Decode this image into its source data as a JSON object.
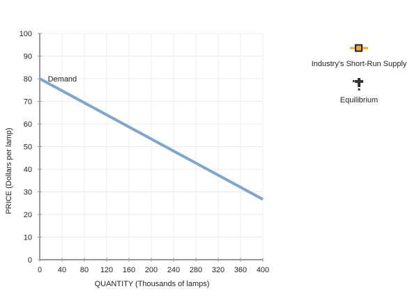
{
  "chart_data": {
    "type": "line",
    "title": "",
    "xlabel": "QUANTITY (Thousands of lamps)",
    "ylabel": "PRICE (Dollars per lamp)",
    "xlim": [
      0,
      400
    ],
    "ylim": [
      0,
      100
    ],
    "x_ticks": [
      0,
      40,
      80,
      120,
      160,
      200,
      240,
      280,
      320,
      360,
      400
    ],
    "y_ticks": [
      0,
      10,
      20,
      30,
      40,
      50,
      60,
      70,
      80,
      90,
      100
    ],
    "grid": true,
    "series": [
      {
        "name": "Demand",
        "color": "#7ea6cf",
        "x": [
          0,
          400
        ],
        "y": [
          80,
          26.7
        ],
        "label_position": {
          "x": 12,
          "y": 80
        }
      }
    ],
    "legend": {
      "position": "right",
      "entries": [
        {
          "name": "Industry's Short-Run Supply",
          "icon": "orange-square-line-marker",
          "color": "#f5a623",
          "border": "#222222"
        },
        {
          "name": "Equilibrium",
          "icon": "dark-cross-marker",
          "color": "#333333"
        }
      ]
    }
  },
  "legend": {
    "supply_label": "Industry's Short-Run Supply",
    "equilibrium_label": "Equilibrium"
  },
  "curve_labels": {
    "demand": "Demand"
  },
  "axes": {
    "x_title": "QUANTITY (Thousands of lamps)",
    "y_title": "PRICE (Dollars per lamp)"
  }
}
